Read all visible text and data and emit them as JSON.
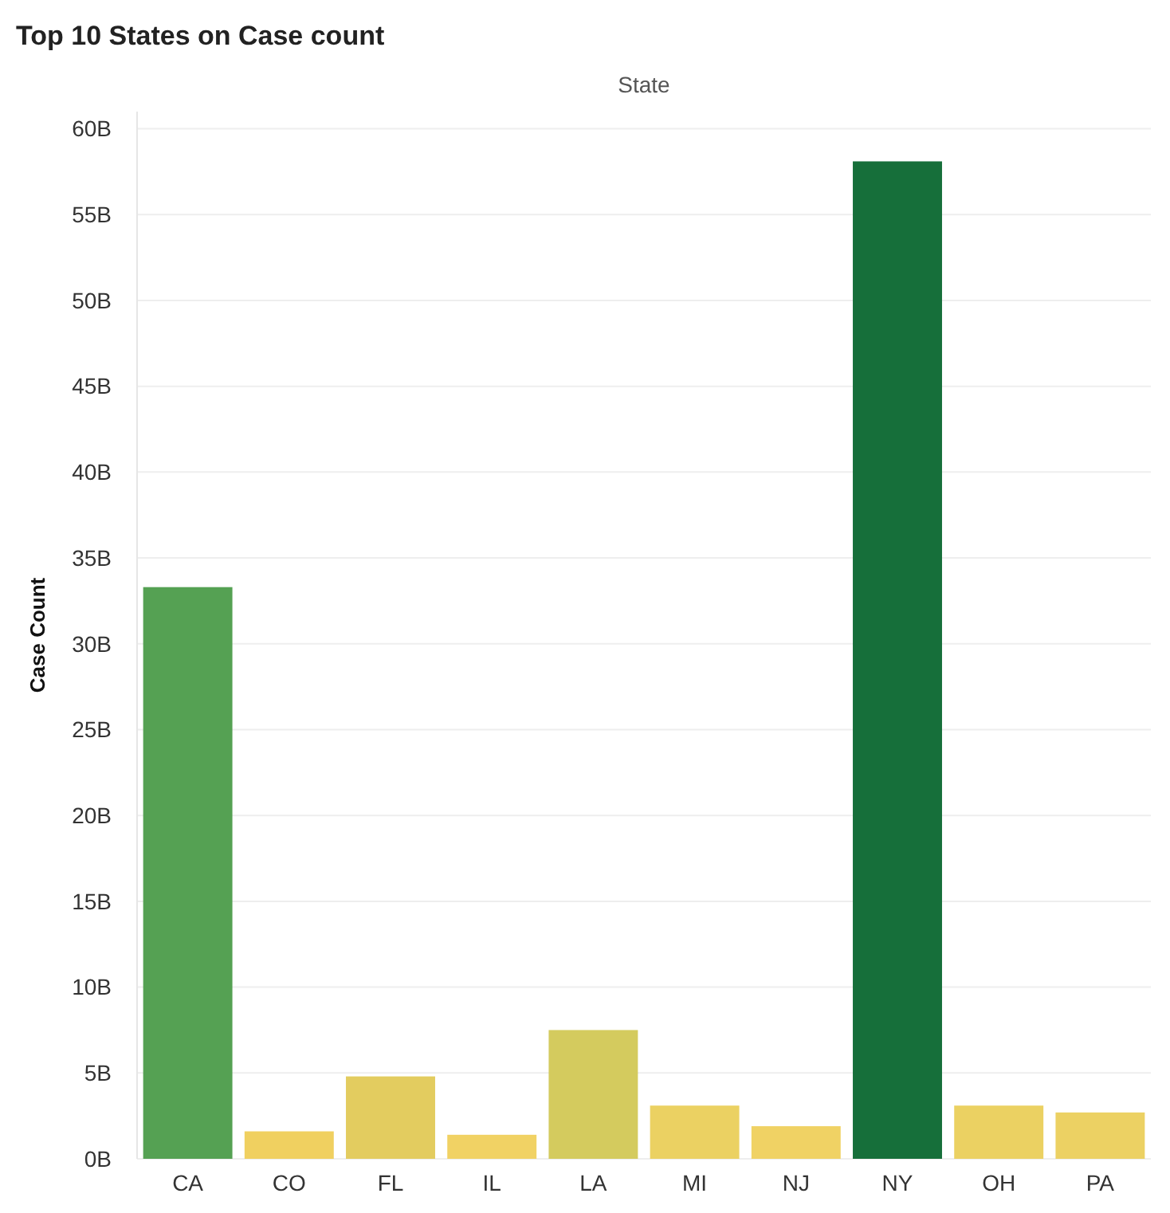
{
  "chart_data": {
    "type": "bar",
    "title": "Top 10 States on Case count",
    "xlabel": "State",
    "ylabel": "Case Count",
    "categories": [
      "CA",
      "CO",
      "FL",
      "IL",
      "LA",
      "MI",
      "NJ",
      "NY",
      "OH",
      "PA"
    ],
    "values": [
      33.3,
      1.6,
      4.8,
      1.4,
      7.5,
      3.1,
      1.9,
      58.1,
      3.1,
      2.7
    ],
    "colors": [
      "#55a153",
      "#f0d060",
      "#e3cc5f",
      "#f1d264",
      "#d4cb5e",
      "#ebd162",
      "#f0d264",
      "#166f3a",
      "#ebd162",
      "#ecd163"
    ],
    "ylim": [
      0,
      61
    ],
    "yticks": [
      {
        "value": 0,
        "label": "0B"
      },
      {
        "value": 5,
        "label": "5B"
      },
      {
        "value": 10,
        "label": "10B"
      },
      {
        "value": 15,
        "label": "15B"
      },
      {
        "value": 20,
        "label": "20B"
      },
      {
        "value": 25,
        "label": "25B"
      },
      {
        "value": 30,
        "label": "30B"
      },
      {
        "value": 35,
        "label": "35B"
      },
      {
        "value": 40,
        "label": "40B"
      },
      {
        "value": 45,
        "label": "45B"
      },
      {
        "value": 50,
        "label": "50B"
      },
      {
        "value": 55,
        "label": "55B"
      },
      {
        "value": 60,
        "label": "60B"
      }
    ],
    "grid": "y"
  }
}
